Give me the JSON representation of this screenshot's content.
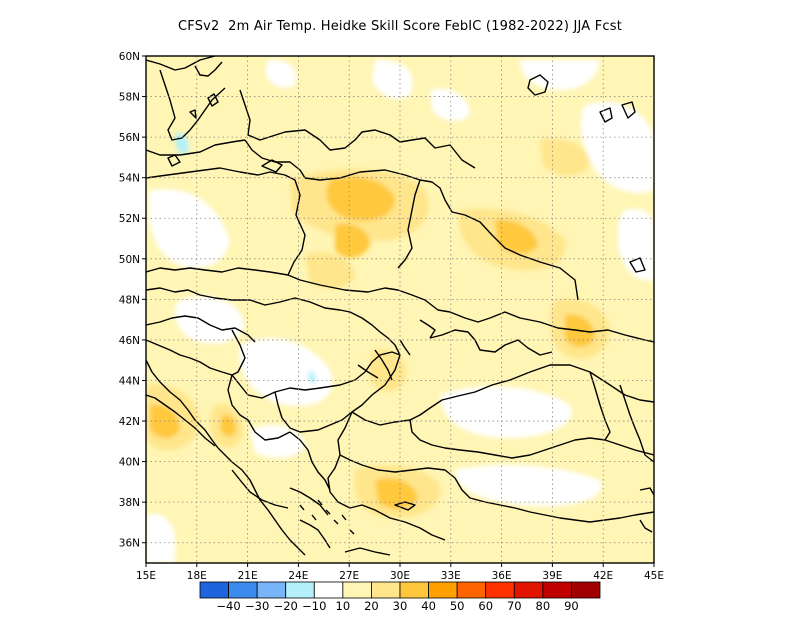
{
  "title": "CFSv2  2m Air Temp. Heidke Skill Score FebIC (1982-2022) JJA Fcst",
  "map": {
    "projection": "lat-lon",
    "lon_range": [
      15,
      45
    ],
    "lat_range": [
      35,
      60
    ],
    "x_ticks": [
      "15E",
      "18E",
      "21E",
      "24E",
      "27E",
      "30E",
      "33E",
      "36E",
      "39E",
      "42E",
      "45E"
    ],
    "y_ticks": [
      "36N",
      "38N",
      "40N",
      "42N",
      "44N",
      "46N",
      "48N",
      "50N",
      "52N",
      "54N",
      "56N",
      "58N",
      "60N"
    ],
    "grid": "dotted"
  },
  "colorbar": {
    "labels": [
      "-40",
      "-30",
      "-20",
      "-10",
      "10",
      "20",
      "30",
      "40",
      "50",
      "60",
      "70",
      "80",
      "90"
    ],
    "colors": [
      "#1e64dc",
      "#3c8cf0",
      "#78b4f8",
      "#b4f0fa",
      "#ffffff",
      "#fff5b4",
      "#ffe68c",
      "#ffc83c",
      "#ffa000",
      "#ff6400",
      "#ff3200",
      "#e11400",
      "#c00000",
      "#a00000"
    ]
  }
}
